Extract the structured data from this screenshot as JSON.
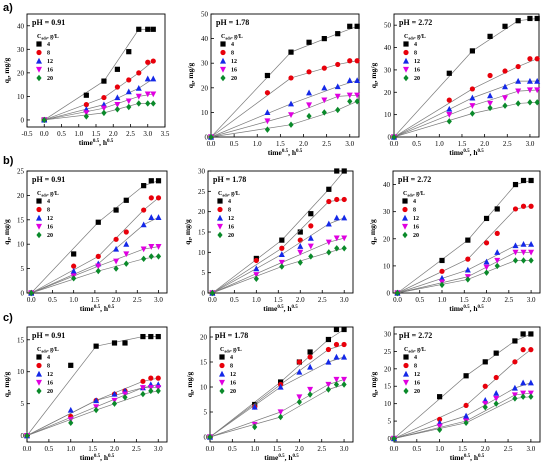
{
  "figure": {
    "row_labels": [
      "a)",
      "b)",
      "c)"
    ],
    "legend_header": "C<sub>ads</sub>, g/L",
    "legend_items": [
      "4",
      "8",
      "12",
      "16",
      "20"
    ],
    "series_colors": [
      "#000000",
      "#e8000b",
      "#1428e8",
      "#e000e0",
      "#0a8a2a"
    ],
    "series_markers": [
      "square",
      "circle",
      "triangle-up",
      "triangle-down",
      "diamond"
    ],
    "xlabel": "time^0.5, h^0.5",
    "ylabel": "q_t, mg/g"
  },
  "chart_data": [
    {
      "id": "a1",
      "type": "scatter",
      "title": "pH = 0.91",
      "xlim": [
        -0.5,
        3.5
      ],
      "ylim": [
        -3,
        45
      ],
      "xticks": [
        -0.5,
        0.0,
        0.5,
        1.0,
        1.5,
        2.0,
        2.5,
        3.0,
        3.5
      ],
      "yticks": [
        0,
        10,
        20,
        30,
        40
      ],
      "x": [
        0,
        1.22,
        1.73,
        2.12,
        2.45,
        2.74,
        3.0,
        3.16
      ],
      "series": [
        {
          "name": "4",
          "values": [
            0,
            10.5,
            16.5,
            21.5,
            29,
            38.5,
            38.5,
            38.5
          ]
        },
        {
          "name": "8",
          "values": [
            0,
            6.5,
            9.5,
            14,
            17,
            20,
            24.5,
            25
          ]
        },
        {
          "name": "12",
          "values": [
            0,
            4.5,
            6.5,
            9.5,
            12,
            13.5,
            17.5,
            17.5
          ]
        },
        {
          "name": "16",
          "values": [
            0,
            3,
            5,
            6.5,
            8,
            10,
            11,
            11
          ]
        },
        {
          "name": "20",
          "values": [
            0,
            1.5,
            3,
            4.5,
            5.5,
            7,
            7,
            7
          ]
        }
      ]
    },
    {
      "id": "a2",
      "type": "scatter",
      "title": "pH = 1.78",
      "xlim": [
        0,
        3.2
      ],
      "ylim": [
        0,
        50
      ],
      "xticks": [
        0.0,
        0.5,
        1.0,
        1.5,
        2.0,
        2.5,
        3.0
      ],
      "yticks": [
        0,
        10,
        20,
        30,
        40,
        50
      ],
      "x": [
        0,
        1.22,
        1.73,
        2.12,
        2.45,
        2.74,
        3.0,
        3.16
      ],
      "series": [
        {
          "name": "4",
          "values": [
            0,
            25,
            34.5,
            38.5,
            40,
            42,
            45,
            45
          ]
        },
        {
          "name": "8",
          "values": [
            0,
            18,
            24,
            26.5,
            28,
            29.5,
            31,
            31
          ]
        },
        {
          "name": "12",
          "values": [
            0,
            10,
            13.5,
            18,
            20,
            20.5,
            23,
            23
          ]
        },
        {
          "name": "16",
          "values": [
            0,
            6.5,
            9,
            13,
            15,
            16.5,
            17,
            17
          ]
        },
        {
          "name": "20",
          "values": [
            0,
            3,
            5,
            8.5,
            10,
            11,
            14.5,
            14.5
          ]
        }
      ]
    },
    {
      "id": "a3",
      "type": "scatter",
      "title": "pH = 2.72",
      "xlim": [
        0,
        3.2
      ],
      "ylim": [
        0,
        55
      ],
      "xticks": [
        0.0,
        0.5,
        1.0,
        1.5,
        2.0,
        2.5,
        3.0
      ],
      "yticks": [
        0,
        10,
        20,
        30,
        40,
        50
      ],
      "x": [
        0,
        1.22,
        1.73,
        2.12,
        2.45,
        2.74,
        3.0,
        3.16
      ],
      "series": [
        {
          "name": "4",
          "values": [
            0,
            28.5,
            38.5,
            45,
            49.5,
            52,
            53,
            53
          ]
        },
        {
          "name": "8",
          "values": [
            0,
            16.5,
            21.5,
            27.5,
            29.5,
            31.5,
            35,
            35
          ]
        },
        {
          "name": "12",
          "values": [
            0,
            12.5,
            17.5,
            18.5,
            22.5,
            25,
            25,
            25
          ]
        },
        {
          "name": "16",
          "values": [
            0,
            10,
            14,
            15,
            17.5,
            20.5,
            21,
            21
          ]
        },
        {
          "name": "20",
          "values": [
            0,
            7,
            10.5,
            13,
            14,
            15,
            15.5,
            15.5
          ]
        }
      ]
    },
    {
      "id": "b1",
      "type": "scatter",
      "title": "pH = 0.91",
      "xlim": [
        -0.1,
        3.2
      ],
      "ylim": [
        0,
        25
      ],
      "xticks": [
        0.0,
        0.5,
        1.0,
        1.5,
        2.0,
        2.5,
        3.0
      ],
      "yticks": [
        0,
        5,
        10,
        15,
        20,
        25
      ],
      "x": [
        0,
        1.0,
        1.58,
        2.0,
        2.24,
        2.65,
        2.83,
        3.0
      ],
      "series": [
        {
          "name": "4",
          "values": [
            0,
            8,
            14.5,
            17,
            19,
            22,
            23,
            23
          ]
        },
        {
          "name": "8",
          "values": [
            0,
            5.5,
            7.5,
            11,
            12.5,
            17,
            19.5,
            19.5
          ]
        },
        {
          "name": "12",
          "values": [
            0,
            4.5,
            6,
            9,
            10,
            14,
            15.5,
            15.5
          ]
        },
        {
          "name": "16",
          "values": [
            0,
            3.5,
            5.5,
            6.5,
            8,
            9,
            9.5,
            9.5
          ]
        },
        {
          "name": "20",
          "values": [
            0,
            3,
            4.5,
            5,
            6,
            7,
            7.5,
            7.5
          ]
        }
      ]
    },
    {
      "id": "b2",
      "type": "scatter",
      "title": "pH = 1.78",
      "xlim": [
        -0.1,
        3.2
      ],
      "ylim": [
        0,
        30
      ],
      "xticks": [
        0.0,
        0.5,
        1.0,
        1.5,
        2.0,
        2.5,
        3.0
      ],
      "yticks": [
        0,
        5,
        10,
        15,
        20,
        25,
        30
      ],
      "x": [
        0,
        1.0,
        1.58,
        2.0,
        2.24,
        2.65,
        2.83,
        3.0
      ],
      "series": [
        {
          "name": "4",
          "values": [
            0,
            8.5,
            13,
            15,
            19.5,
            25.5,
            30,
            30
          ]
        },
        {
          "name": "8",
          "values": [
            0,
            8,
            11,
            13,
            16.5,
            22.5,
            23,
            23
          ]
        },
        {
          "name": "12",
          "values": [
            0,
            6,
            9.5,
            11.5,
            13.5,
            17,
            18.5,
            18.5
          ]
        },
        {
          "name": "16",
          "values": [
            0,
            4.5,
            7.5,
            10,
            11.5,
            12.5,
            13.5,
            13.5
          ]
        },
        {
          "name": "20",
          "values": [
            0,
            3.5,
            6.5,
            7.5,
            9,
            10,
            11,
            11
          ]
        }
      ]
    },
    {
      "id": "b3",
      "type": "scatter",
      "title": "pH = 2.72",
      "xlim": [
        -0.1,
        3.2
      ],
      "ylim": [
        0,
        45
      ],
      "xticks": [
        0.0,
        0.5,
        1.0,
        1.5,
        2.0,
        2.5,
        3.0
      ],
      "yticks": [
        0,
        10,
        20,
        30,
        40
      ],
      "x": [
        0,
        1.0,
        1.58,
        2.0,
        2.24,
        2.65,
        2.83,
        3.0
      ],
      "series": [
        {
          "name": "4",
          "values": [
            0,
            12,
            19.5,
            27.5,
            31,
            40,
            41.5,
            41.5
          ]
        },
        {
          "name": "8",
          "values": [
            0,
            8,
            12.5,
            18.5,
            22,
            31,
            32,
            32
          ]
        },
        {
          "name": "12",
          "values": [
            0,
            5.5,
            8.5,
            11.5,
            15,
            17.5,
            18,
            18
          ]
        },
        {
          "name": "16",
          "values": [
            0,
            4,
            6,
            9.5,
            12,
            15,
            15,
            15
          ]
        },
        {
          "name": "20",
          "values": [
            0,
            3,
            5,
            7.5,
            10,
            12,
            12,
            12
          ]
        }
      ]
    },
    {
      "id": "c1",
      "type": "scatter",
      "title": "pH = 0.91",
      "xlim": [
        0,
        3.2
      ],
      "ylim": [
        -1,
        17
      ],
      "xticks": [
        0.0,
        0.5,
        1.0,
        1.5,
        2.0,
        2.5,
        3.0
      ],
      "yticks": [
        0,
        5,
        10,
        15
      ],
      "x": [
        0,
        1.0,
        1.58,
        2.0,
        2.24,
        2.65,
        2.83,
        3.0
      ],
      "series": [
        {
          "name": "4",
          "values": [
            0,
            11,
            14,
            14.5,
            14.5,
            15.5,
            15.5,
            15.5
          ]
        },
        {
          "name": "8",
          "values": [
            0,
            3,
            5.5,
            6.5,
            7,
            8.5,
            9,
            9
          ]
        },
        {
          "name": "12",
          "values": [
            0,
            4,
            5.5,
            6.5,
            7,
            7.5,
            8,
            8
          ]
        },
        {
          "name": "16",
          "values": [
            0,
            2.5,
            4.5,
            5.5,
            6.5,
            7.5,
            7.5,
            7.5
          ]
        },
        {
          "name": "20",
          "values": [
            0,
            2,
            4,
            5,
            6,
            6.5,
            7,
            7
          ]
        }
      ]
    },
    {
      "id": "c2",
      "type": "scatter",
      "title": "pH = 1.78",
      "xlim": [
        0,
        3.2
      ],
      "ylim": [
        -1,
        22
      ],
      "xticks": [
        0.0,
        0.5,
        1.0,
        1.5,
        2.0,
        2.5,
        3.0
      ],
      "yticks": [
        0,
        5,
        10,
        15,
        20
      ],
      "x": [
        0,
        1.0,
        1.58,
        2.0,
        2.24,
        2.65,
        2.83,
        3.0
      ],
      "series": [
        {
          "name": "4",
          "values": [
            0,
            6.5,
            11,
            15,
            17,
            19.5,
            21.5,
            21.5
          ]
        },
        {
          "name": "8",
          "values": [
            0,
            6,
            10.5,
            15,
            16,
            17.5,
            18.5,
            18.5
          ]
        },
        {
          "name": "12",
          "values": [
            0,
            6,
            10,
            13,
            14,
            15,
            16,
            16
          ]
        },
        {
          "name": "16",
          "values": [
            0,
            2.5,
            5,
            8,
            9.5,
            10.5,
            11.5,
            11.5
          ]
        },
        {
          "name": "20",
          "values": [
            0,
            2,
            4,
            7,
            8.5,
            9.5,
            10.5,
            10.5
          ]
        }
      ]
    },
    {
      "id": "c3",
      "type": "scatter",
      "title": "pH = 2.72",
      "xlim": [
        0,
        3.2
      ],
      "ylim": [
        -1,
        32
      ],
      "xticks": [
        0.0,
        0.5,
        1.0,
        1.5,
        2.0,
        2.5,
        3.0
      ],
      "yticks": [
        0,
        5,
        10,
        15,
        20,
        25,
        30
      ],
      "x": [
        0,
        1.0,
        1.58,
        2.0,
        2.24,
        2.65,
        2.83,
        3.0
      ],
      "series": [
        {
          "name": "4",
          "values": [
            0,
            12,
            18,
            22,
            24.5,
            28,
            30,
            30
          ]
        },
        {
          "name": "8",
          "values": [
            0,
            5.5,
            9.5,
            15,
            17.5,
            22,
            25.5,
            25.5
          ]
        },
        {
          "name": "12",
          "values": [
            0,
            4.5,
            6.5,
            11,
            13,
            14.5,
            16,
            16
          ]
        },
        {
          "name": "16",
          "values": [
            0,
            3.5,
            5,
            10,
            11.5,
            12.5,
            13,
            13
          ]
        },
        {
          "name": "20",
          "values": [
            0,
            2.5,
            4.5,
            9,
            10,
            11.5,
            12,
            12
          ]
        }
      ]
    }
  ]
}
